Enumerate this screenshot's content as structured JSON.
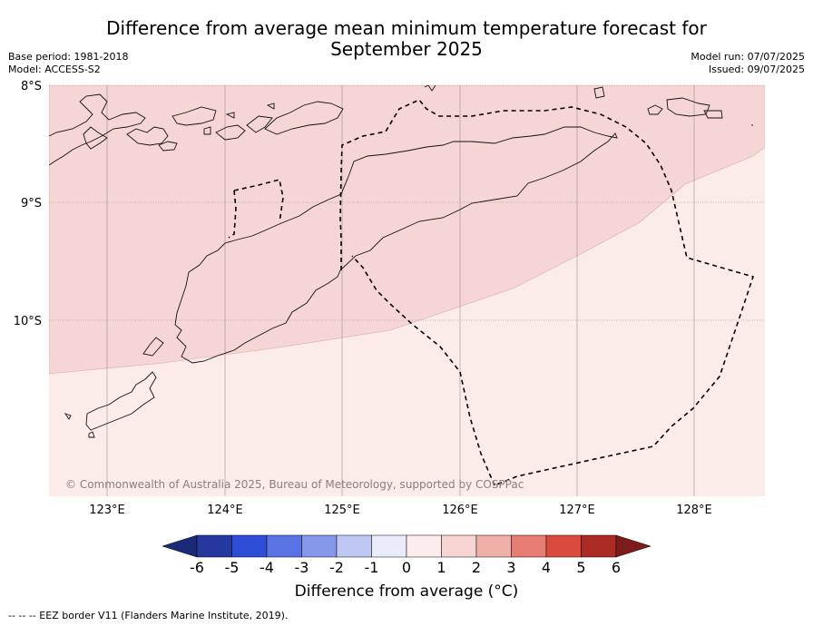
{
  "title_line1": "Difference from average mean minimum temperature forecast for",
  "title_line2": "September 2025",
  "base_period": "Base period: 1981-2018",
  "model": "Model: ACCESS-S2",
  "model_run": "Model run: 07/07/2025",
  "issued": "Issued: 09/07/2025",
  "copyright": "© Commonwealth of Australia 2025, Bureau of Meteorology, supported by COSPPac",
  "lon_ticks": [
    "123°E",
    "124°E",
    "125°E",
    "126°E",
    "127°E",
    "128°E"
  ],
  "lat_ticks": [
    "8°S",
    "9°S",
    "10°S"
  ],
  "colorbar": {
    "title": "Difference from average (°C)",
    "labels": [
      "-6",
      "-5",
      "-4",
      "-3",
      "-2",
      "-1",
      "0",
      "1",
      "2",
      "3",
      "4",
      "5",
      "6"
    ],
    "colors": [
      "#25389f",
      "#2f4ed8",
      "#5a73e2",
      "#8497e9",
      "#bfc8f3",
      "#e9ecfb",
      "#fdecec",
      "#f7d5d2",
      "#f0b0aa",
      "#e67c72",
      "#d94a3f",
      "#ac2a24"
    ],
    "under_color": "#1b2a78",
    "over_color": "#7d1d1b"
  },
  "zones": [
    {
      "name": "1 to 2 °C",
      "color": "#f5d6d4"
    },
    {
      "name": "0 to 1 °C",
      "color": "#fbebe9"
    }
  ],
  "footnote": "--  --  -- EEZ border V11 (Flanders Marine Institute, 2019)."
}
